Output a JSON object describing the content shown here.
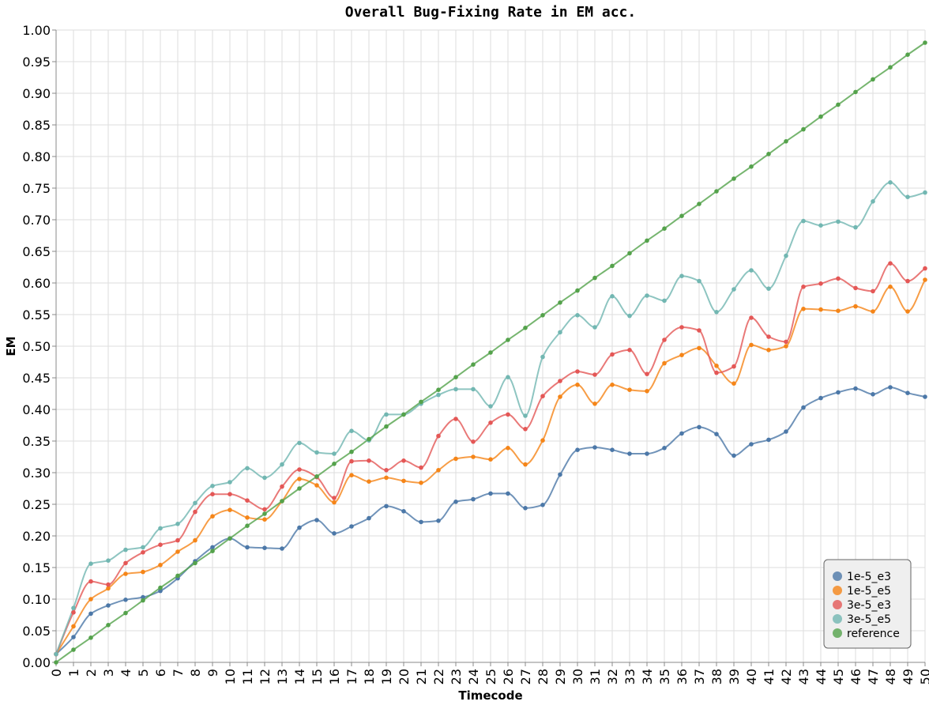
{
  "chart_data": {
    "type": "line",
    "title": "Overall Bug-Fixing Rate in EM acc.",
    "xlabel": "Timecode",
    "ylabel": "EM",
    "xlim": [
      0,
      50
    ],
    "ylim": [
      0,
      1
    ],
    "y_tick_step": 0.05,
    "grid": true,
    "legend_position": "bottom-right",
    "x": [
      0,
      1,
      2,
      3,
      4,
      5,
      6,
      7,
      8,
      9,
      10,
      11,
      12,
      13,
      14,
      15,
      16,
      17,
      18,
      19,
      20,
      21,
      22,
      23,
      24,
      25,
      26,
      27,
      28,
      29,
      30,
      31,
      32,
      33,
      34,
      35,
      36,
      37,
      38,
      39,
      40,
      41,
      42,
      43,
      44,
      45,
      46,
      47,
      48,
      49,
      50
    ],
    "series": [
      {
        "name": "1e-5_e3",
        "color": "#4c78a8",
        "values": [
          0.013,
          0.04,
          0.077,
          0.09,
          0.099,
          0.103,
          0.113,
          0.133,
          0.16,
          0.182,
          0.196,
          0.182,
          0.181,
          0.18,
          0.213,
          0.225,
          0.204,
          0.215,
          0.228,
          0.247,
          0.239,
          0.222,
          0.224,
          0.254,
          0.258,
          0.267,
          0.267,
          0.244,
          0.249,
          0.297,
          0.336,
          0.34,
          0.336,
          0.33,
          0.33,
          0.339,
          0.362,
          0.372,
          0.361,
          0.327,
          0.345,
          0.352,
          0.365,
          0.403,
          0.418,
          0.427,
          0.433,
          0.424,
          0.435,
          0.426,
          0.42
        ]
      },
      {
        "name": "1e-5_e5",
        "color": "#f58518",
        "values": [
          0.013,
          0.057,
          0.1,
          0.117,
          0.14,
          0.143,
          0.154,
          0.175,
          0.193,
          0.231,
          0.241,
          0.229,
          0.226,
          0.255,
          0.29,
          0.28,
          0.253,
          0.296,
          0.286,
          0.292,
          0.287,
          0.284,
          0.304,
          0.322,
          0.325,
          0.321,
          0.339,
          0.313,
          0.351,
          0.42,
          0.439,
          0.409,
          0.439,
          0.431,
          0.429,
          0.473,
          0.486,
          0.497,
          0.469,
          0.441,
          0.502,
          0.494,
          0.5,
          0.559,
          0.558,
          0.556,
          0.563,
          0.555,
          0.594,
          0.555,
          0.605
        ]
      },
      {
        "name": "3e-5_e3",
        "color": "#e45756",
        "values": [
          0.013,
          0.079,
          0.128,
          0.123,
          0.157,
          0.174,
          0.186,
          0.193,
          0.238,
          0.266,
          0.266,
          0.256,
          0.242,
          0.278,
          0.305,
          0.293,
          0.26,
          0.318,
          0.319,
          0.304,
          0.319,
          0.308,
          0.358,
          0.385,
          0.349,
          0.379,
          0.392,
          0.369,
          0.421,
          0.445,
          0.46,
          0.455,
          0.487,
          0.494,
          0.456,
          0.51,
          0.53,
          0.525,
          0.458,
          0.468,
          0.545,
          0.515,
          0.507,
          0.594,
          0.599,
          0.607,
          0.592,
          0.587,
          0.631,
          0.603,
          0.623
        ]
      },
      {
        "name": "3e-5_e5",
        "color": "#72b7b2",
        "values": [
          0.013,
          0.086,
          0.156,
          0.161,
          0.178,
          0.182,
          0.212,
          0.219,
          0.252,
          0.279,
          0.285,
          0.307,
          0.292,
          0.313,
          0.347,
          0.332,
          0.33,
          0.366,
          0.351,
          0.392,
          0.392,
          0.409,
          0.423,
          0.432,
          0.432,
          0.405,
          0.451,
          0.39,
          0.483,
          0.522,
          0.549,
          0.53,
          0.579,
          0.548,
          0.58,
          0.572,
          0.611,
          0.603,
          0.554,
          0.59,
          0.62,
          0.591,
          0.643,
          0.698,
          0.691,
          0.697,
          0.688,
          0.729,
          0.759,
          0.736,
          0.743
        ]
      },
      {
        "name": "reference",
        "color": "#54a24b",
        "values": [
          0.0,
          0.02,
          0.039,
          0.059,
          0.078,
          0.098,
          0.118,
          0.137,
          0.157,
          0.176,
          0.196,
          0.216,
          0.235,
          0.255,
          0.275,
          0.294,
          0.314,
          0.333,
          0.353,
          0.373,
          0.392,
          0.412,
          0.431,
          0.451,
          0.471,
          0.49,
          0.51,
          0.529,
          0.549,
          0.569,
          0.588,
          0.608,
          0.627,
          0.647,
          0.667,
          0.686,
          0.706,
          0.725,
          0.745,
          0.765,
          0.784,
          0.804,
          0.824,
          0.843,
          0.863,
          0.882,
          0.902,
          0.922,
          0.941,
          0.961,
          0.98
        ]
      }
    ]
  }
}
